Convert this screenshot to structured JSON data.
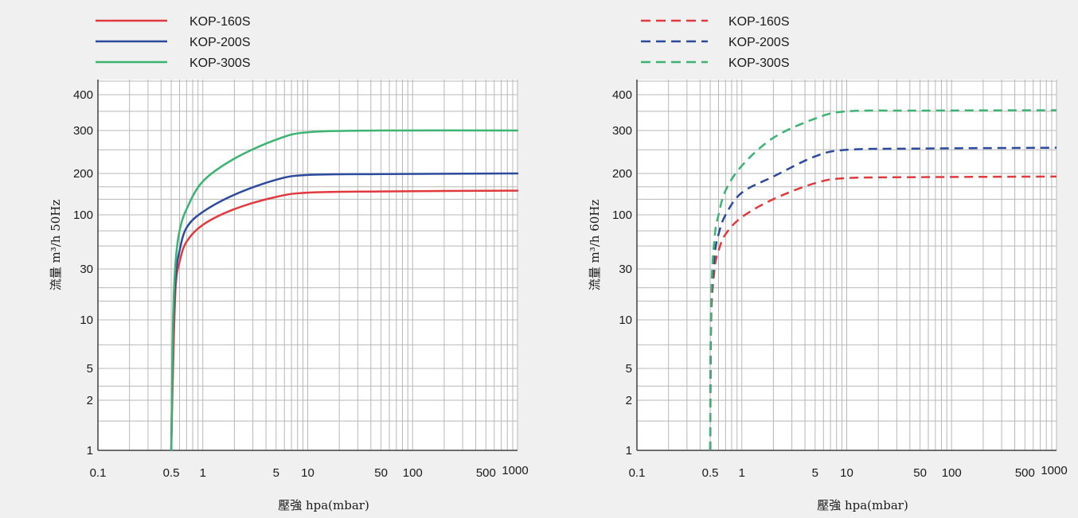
{
  "colors": {
    "background": "#f0f0f0",
    "plot_background": "#ffffff",
    "grid": "#b8b8b8",
    "axis": "#404040",
    "KOP-160S": "#e03a3e",
    "KOP-200S": "#2c4a9c",
    "KOP-300S": "#3cb371"
  },
  "chart_data": [
    {
      "type": "line",
      "line_style": "solid",
      "xlabel": "壓強 hpa(mbar)",
      "ylabel": "流量 m³/h 50Hz",
      "xscale": "log",
      "xlim": [
        0.1,
        1000
      ],
      "ylim": [
        1,
        400
      ],
      "grid": true,
      "legend": "top-left",
      "x_ticks": [
        "0.1",
        "0.5",
        "1",
        "5",
        "10",
        "50",
        "100",
        "500",
        "1000"
      ],
      "y_ticks": [
        "400",
        "300",
        "200",
        "100",
        "30",
        "10",
        "5",
        "2",
        "1"
      ],
      "series": [
        {
          "name": "KOP-160S",
          "x": [
            0.5,
            0.52,
            0.55,
            0.6,
            0.7,
            1,
            2,
            5,
            10,
            50,
            1000
          ],
          "y": [
            1,
            5,
            20,
            35,
            55,
            80,
            110,
            135,
            145,
            148,
            150
          ]
        },
        {
          "name": "KOP-200S",
          "x": [
            0.5,
            0.52,
            0.55,
            0.6,
            0.7,
            1,
            2,
            5,
            10,
            50,
            1000
          ],
          "y": [
            1,
            8,
            25,
            45,
            75,
            105,
            140,
            180,
            195,
            198,
            200
          ]
        },
        {
          "name": "KOP-300S",
          "x": [
            0.5,
            0.52,
            0.55,
            0.6,
            0.7,
            1,
            2,
            5,
            10,
            50,
            1000
          ],
          "y": [
            1,
            10,
            35,
            70,
            110,
            175,
            230,
            275,
            295,
            300,
            300
          ]
        }
      ]
    },
    {
      "type": "line",
      "line_style": "dashed",
      "xlabel": "壓強 hpa(mbar)",
      "ylabel": "流量 m³/h 60Hz",
      "xscale": "log",
      "xlim": [
        0.1,
        1000
      ],
      "ylim": [
        1,
        400
      ],
      "grid": true,
      "legend": "top-left",
      "x_ticks": [
        "0.1",
        "0.5",
        "1",
        "5",
        "10",
        "50",
        "100",
        "500",
        "1000"
      ],
      "y_ticks": [
        "400",
        "300",
        "200",
        "100",
        "30",
        "10",
        "5",
        "2",
        "1"
      ],
      "series": [
        {
          "name": "KOP-160S",
          "x": [
            0.5,
            0.51,
            0.55,
            0.6,
            0.7,
            1,
            2,
            5,
            10,
            50,
            1000
          ],
          "y": [
            1,
            10,
            30,
            45,
            65,
            95,
            130,
            170,
            185,
            188,
            190
          ]
        },
        {
          "name": "KOP-200S",
          "x": [
            0.5,
            0.51,
            0.55,
            0.6,
            0.7,
            1,
            2,
            5,
            10,
            50,
            1000
          ],
          "y": [
            1,
            12,
            40,
            65,
            100,
            145,
            190,
            235,
            250,
            253,
            255
          ]
        },
        {
          "name": "KOP-300S",
          "x": [
            0.5,
            0.51,
            0.55,
            0.6,
            0.7,
            1,
            2,
            5,
            10,
            50,
            1000
          ],
          "y": [
            1,
            15,
            60,
            100,
            150,
            215,
            280,
            330,
            350,
            352,
            353
          ]
        }
      ]
    }
  ]
}
